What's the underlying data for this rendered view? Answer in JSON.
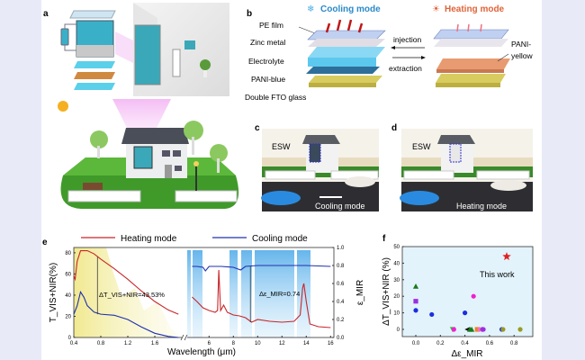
{
  "panels": {
    "a": {
      "label": "a"
    },
    "b": {
      "label": "b",
      "cooling_title": "Cooling mode",
      "heating_title": "Heating mode",
      "cooling_color": "#2a8ac8",
      "heating_color": "#e0643a",
      "layers": [
        "PE film",
        "Zinc metal",
        "Electrolyte",
        "PANI-blue",
        "Double FTO glass"
      ],
      "injection": "injection",
      "extraction": "extraction",
      "pani_yellow_1": "PANI-",
      "pani_yellow_2": "yellow"
    },
    "c": {
      "label": "c",
      "tag": "ESW",
      "caption": "Cooling mode"
    },
    "d": {
      "label": "d",
      "tag": "ESW",
      "caption": "Heating mode"
    },
    "e": {
      "label": "e"
    },
    "f": {
      "label": "f"
    }
  },
  "chart_data": [
    {
      "type": "line",
      "panel": "e",
      "legend": [
        "Heating mode",
        "Cooling mode"
      ],
      "legend_placement": "top",
      "xlabel": "Wavelength (μm)",
      "ylabel_left": "T_VIS+NIR(%)",
      "ylabel_right": "ε_MIR",
      "x_ticks_left": [
        "0.4",
        "0.8",
        "1.2",
        "1.6"
      ],
      "x_ticks_right": [
        "6",
        "8",
        "10",
        "12",
        "14",
        "16"
      ],
      "y_ticks_left": [
        "0",
        "20",
        "40",
        "60",
        "80"
      ],
      "y_ticks_right": [
        "0.0",
        "0.2",
        "0.4",
        "0.6",
        "0.8",
        "1.0"
      ],
      "xlim_left": [
        0.4,
        1.95
      ],
      "xlim_right": [
        4.2,
        16
      ],
      "ylim_left": [
        0,
        85
      ],
      "ylim_right": [
        0,
        1.0
      ],
      "annotations": [
        "ΔT_VIS+NIR=43.53%",
        "Δε_MIR=0.74"
      ],
      "series": [
        {
          "name": "Heating mode",
          "color": "#c8252a",
          "vis_nir": [
            [
              0.4,
              58
            ],
            [
              0.42,
              55
            ],
            [
              0.45,
              72
            ],
            [
              0.5,
              82
            ],
            [
              0.6,
              82
            ],
            [
              0.7,
              79
            ],
            [
              0.8,
              74
            ],
            [
              1.0,
              65
            ],
            [
              1.2,
              55
            ],
            [
              1.4,
              44
            ],
            [
              1.6,
              34
            ],
            [
              1.8,
              26
            ],
            [
              1.95,
              22
            ]
          ],
          "mir": [
            [
              4.6,
              0.45
            ],
            [
              5,
              0.4
            ],
            [
              5.5,
              0.33
            ],
            [
              6,
              0.3
            ],
            [
              6.5,
              0.28
            ],
            [
              6.7,
              0.3
            ],
            [
              6.8,
              0.75
            ],
            [
              6.95,
              0.3
            ],
            [
              7.2,
              0.36
            ],
            [
              7.5,
              0.28
            ],
            [
              8,
              0.25
            ],
            [
              8.5,
              0.24
            ],
            [
              9,
              0.22
            ],
            [
              9.5,
              0.17
            ],
            [
              10,
              0.2
            ],
            [
              11,
              0.18
            ],
            [
              12,
              0.17
            ],
            [
              13,
              0.18
            ],
            [
              13.5,
              0.25
            ],
            [
              13.7,
              0.55
            ],
            [
              13.8,
              0.6
            ],
            [
              14,
              0.4
            ],
            [
              14.3,
              0.15
            ],
            [
              15,
              0.12
            ],
            [
              16,
              0.11
            ]
          ]
        },
        {
          "name": "Cooling mode",
          "color": "#2030b0",
          "vis_nir": [
            [
              0.4,
              22
            ],
            [
              0.45,
              30
            ],
            [
              0.5,
              43
            ],
            [
              0.55,
              38
            ],
            [
              0.6,
              30
            ],
            [
              0.7,
              24
            ],
            [
              0.8,
              22
            ],
            [
              1.0,
              21
            ],
            [
              1.2,
              17
            ],
            [
              1.4,
              10
            ],
            [
              1.6,
              4
            ],
            [
              1.8,
              1
            ],
            [
              1.95,
              0
            ]
          ],
          "mir": [
            [
              4.6,
              0.79
            ],
            [
              5,
              0.79
            ],
            [
              5.5,
              0.78
            ],
            [
              5.7,
              0.74
            ],
            [
              6,
              0.79
            ],
            [
              7,
              0.79
            ],
            [
              8,
              0.78
            ],
            [
              8.6,
              0.75
            ],
            [
              9,
              0.79
            ],
            [
              10,
              0.8
            ],
            [
              12,
              0.8
            ],
            [
              14,
              0.8
            ],
            [
              16,
              0.79
            ]
          ]
        }
      ]
    },
    {
      "type": "scatter",
      "panel": "f",
      "xlabel": "Δε_MIR",
      "ylabel": "ΔT_VIS+NIR (%)",
      "x_ticks": [
        "0.0",
        "0.2",
        "0.4",
        "0.6",
        "0.8"
      ],
      "y_ticks": [
        "0",
        "10",
        "20",
        "30",
        "40",
        "50"
      ],
      "xlim": [
        -0.1,
        0.92
      ],
      "ylim": [
        -5,
        50
      ],
      "annotation": "This work",
      "background": "#e3f3fb",
      "points": [
        {
          "x": 0.74,
          "y": 44,
          "marker": "star",
          "color": "#e02020"
        },
        {
          "x": 0.0,
          "y": 26,
          "marker": "triangle",
          "color": "#1a7a1a"
        },
        {
          "x": 0.0,
          "y": 17,
          "marker": "square",
          "color": "#9a30e0"
        },
        {
          "x": 0.0,
          "y": 11.5,
          "marker": "circle",
          "color": "#1a2ee0"
        },
        {
          "x": 0.13,
          "y": 9,
          "marker": "circle",
          "color": "#1a2ee0"
        },
        {
          "x": 0.4,
          "y": 10,
          "marker": "circle",
          "color": "#1a2ee0"
        },
        {
          "x": 0.47,
          "y": 20,
          "marker": "circle",
          "color": "#f020d0"
        },
        {
          "x": 0.3,
          "y": 0,
          "marker": "triangle-down",
          "color": "#20c020"
        },
        {
          "x": 0.31,
          "y": 0,
          "marker": "circle",
          "color": "#f020d0"
        },
        {
          "x": 0.42,
          "y": 0,
          "marker": "triangle-left",
          "color": "#111111"
        },
        {
          "x": 0.44,
          "y": 0,
          "marker": "triangle",
          "color": "#1a7a1a"
        },
        {
          "x": 0.455,
          "y": 0,
          "marker": "triangle",
          "color": "#1a7a1a"
        },
        {
          "x": 0.5,
          "y": 0,
          "marker": "square",
          "color": "#f08020"
        },
        {
          "x": 0.52,
          "y": 0,
          "marker": "circle",
          "color": "#f070c0"
        },
        {
          "x": 0.54,
          "y": 0,
          "marker": "diamond",
          "color": "#9a30e0"
        },
        {
          "x": 0.55,
          "y": 0,
          "marker": "circle",
          "color": "#9a30e0"
        },
        {
          "x": 0.7,
          "y": 0,
          "marker": "circle",
          "color": "#1a2ee0"
        },
        {
          "x": 0.71,
          "y": 0,
          "marker": "circle",
          "color": "#9a9a20"
        },
        {
          "x": 0.85,
          "y": 0,
          "marker": "circle",
          "color": "#9a9a20"
        }
      ]
    }
  ]
}
